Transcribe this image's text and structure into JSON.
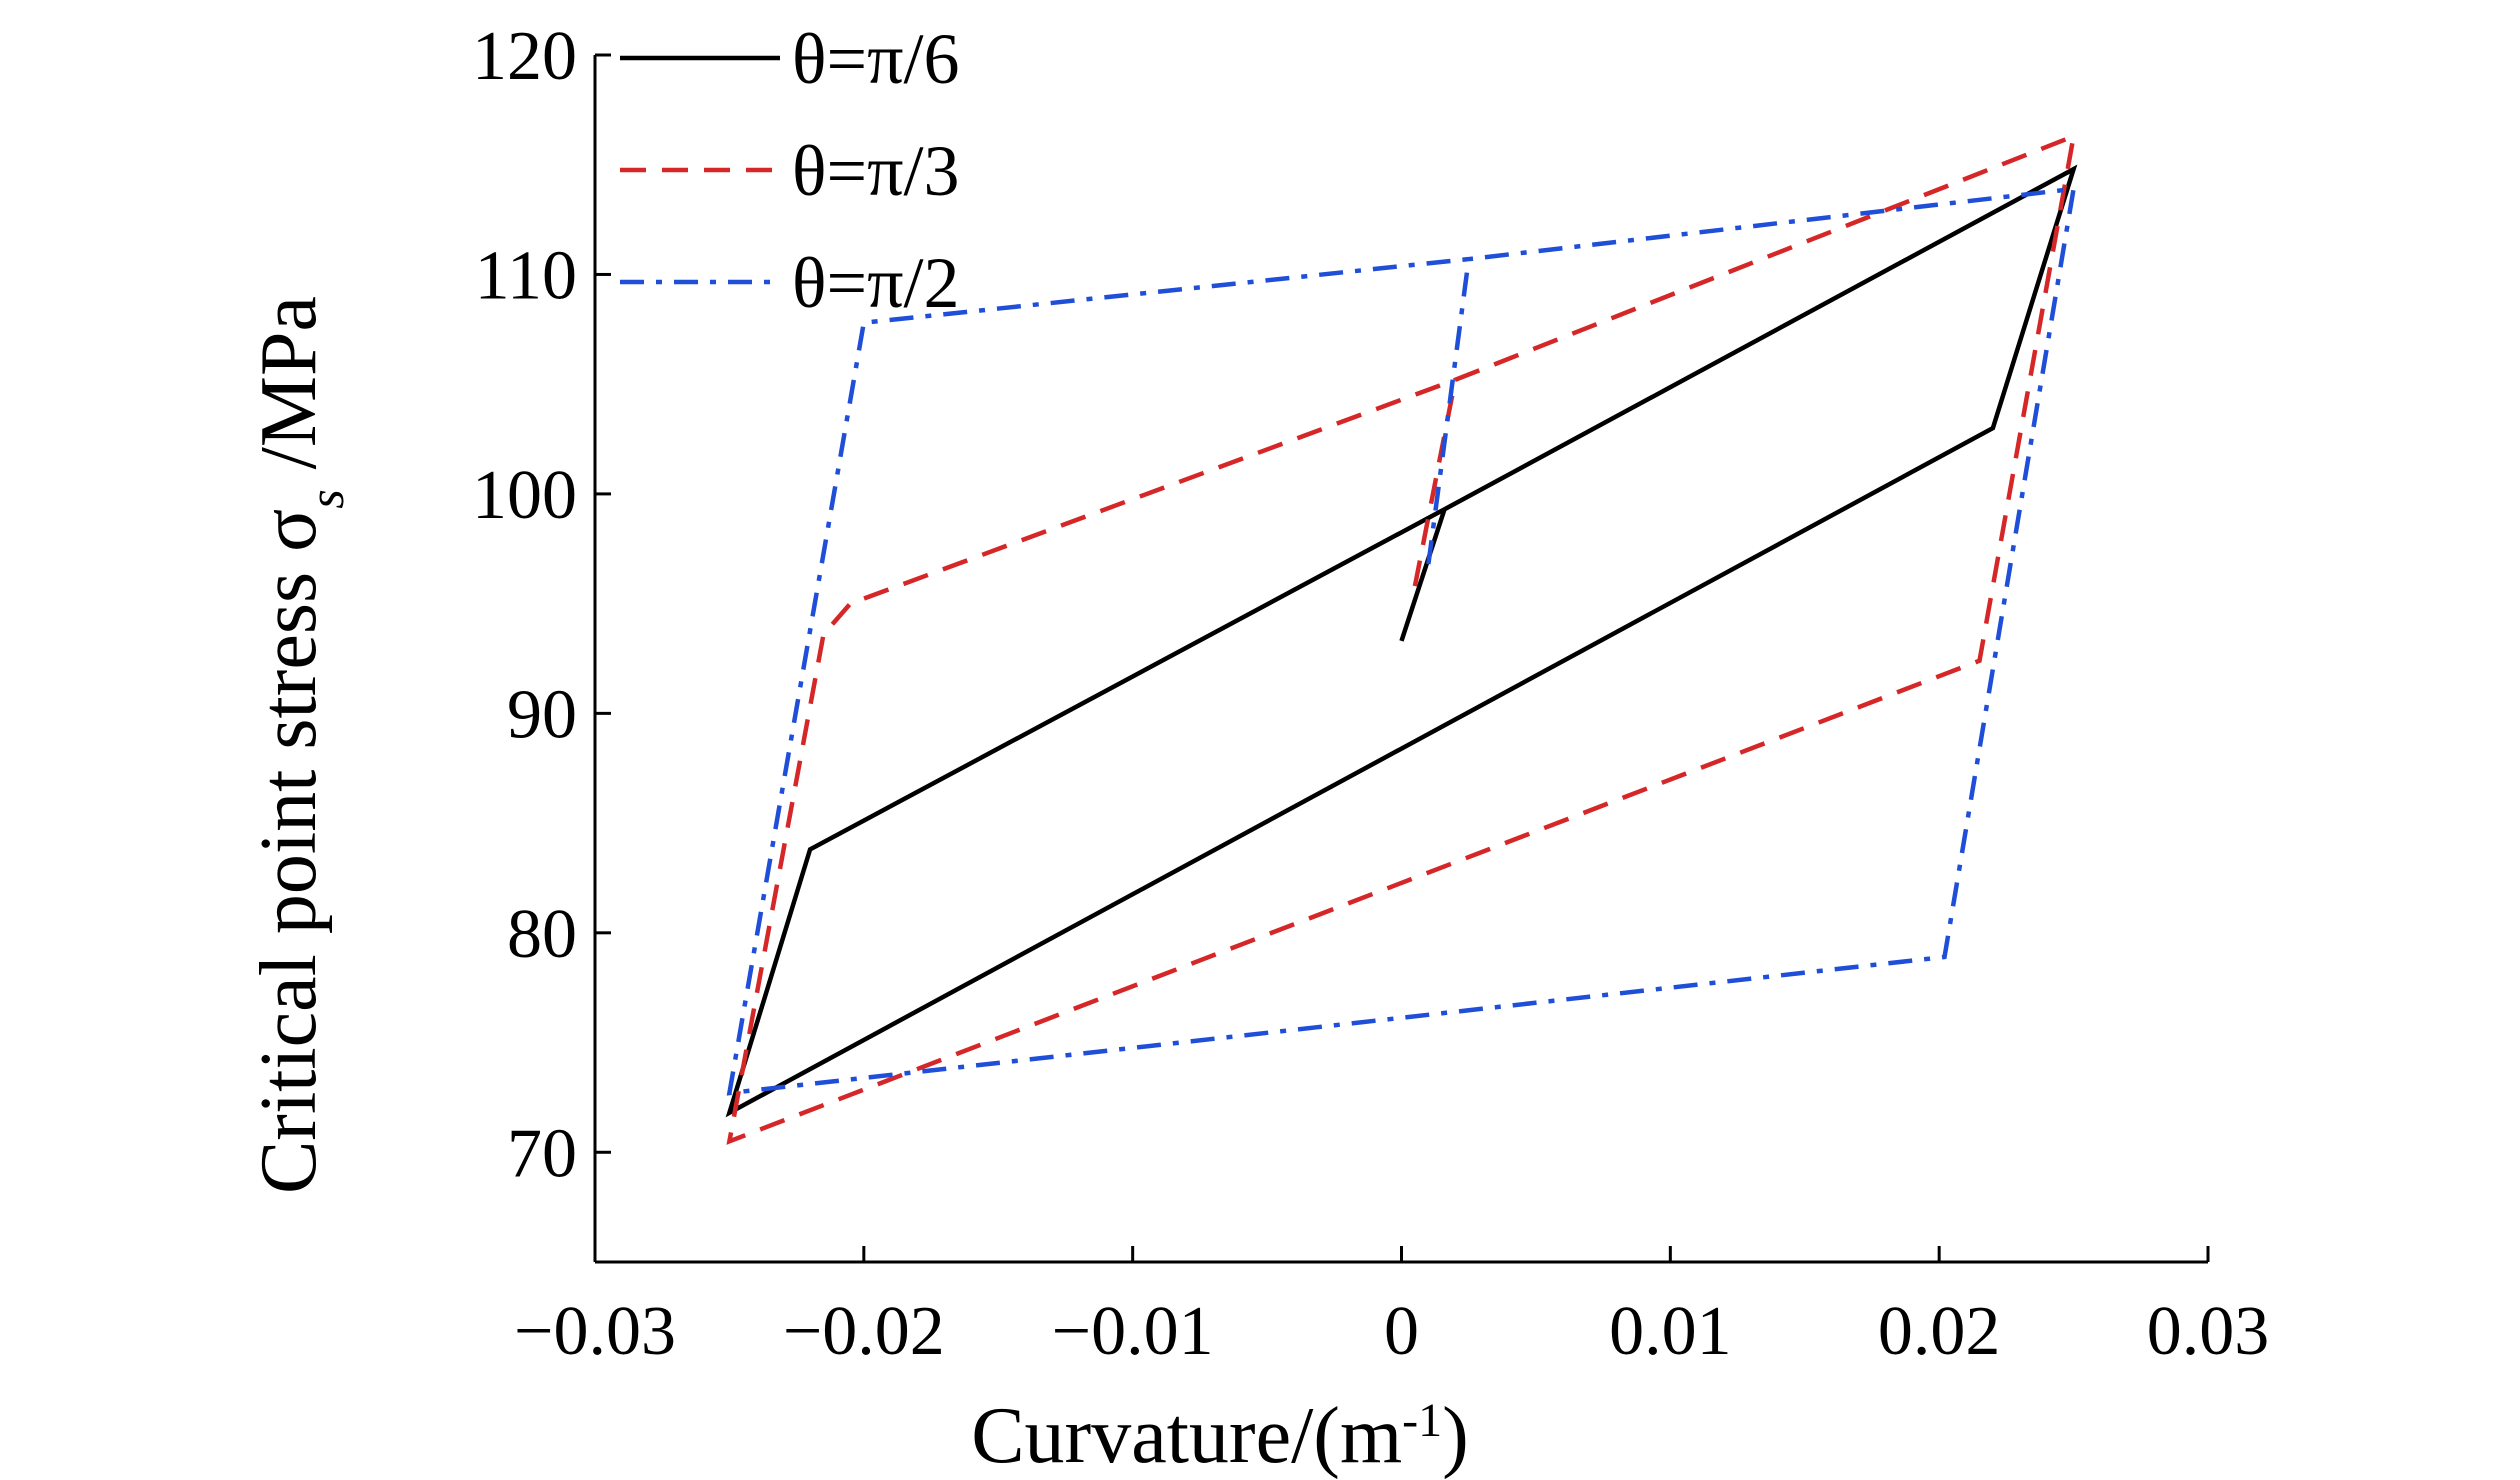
{
  "chart_data": {
    "type": "line",
    "title": "",
    "xlabel": "Curvature/(m",
    "xlabel_sup": "-1",
    "xlabel_tail": ")",
    "ylabel": "Critical point stress σ",
    "ylabel_sub": "s",
    "ylabel_tail": " /MPa",
    "xlim": [
      -0.03,
      0.03
    ],
    "ylim": [
      65,
      120
    ],
    "xticks": [
      -0.03,
      -0.02,
      -0.01,
      0,
      0.01,
      0.02,
      0.03
    ],
    "xtick_labels": [
      "−0.03",
      "−0.02",
      "−0.01",
      "0",
      "0.01",
      "0.02",
      "0.03"
    ],
    "yticks": [
      70,
      80,
      90,
      100,
      110,
      120
    ],
    "ytick_labels": [
      "70",
      "80",
      "90",
      "100",
      "110",
      "120"
    ],
    "grid": false,
    "legend_position": "top-left",
    "series": [
      {
        "name": "θ=π/6",
        "color": "#000000",
        "dash": "solid",
        "points": [
          [
            0.0,
            93.3
          ],
          [
            0.0016,
            99.3
          ],
          [
            0.025,
            114.8
          ],
          [
            0.022,
            103.0
          ],
          [
            -0.025,
            71.8
          ],
          [
            -0.022,
            83.8
          ],
          [
            0.0016,
            99.3
          ]
        ]
      },
      {
        "name": "θ=π/3",
        "color": "#d62728",
        "dash": "dashed",
        "points": [
          [
            0.0005,
            95.8
          ],
          [
            0.002,
            105.2
          ],
          [
            0.025,
            116.3
          ],
          [
            0.0215,
            92.4
          ],
          [
            -0.025,
            70.5
          ],
          [
            -0.0215,
            93.6
          ],
          [
            -0.0205,
            95.0
          ],
          [
            0.002,
            105.2
          ]
        ]
      },
      {
        "name": "θ=π/2",
        "color": "#1f4ed8",
        "dash": "dashdot",
        "points": [
          [
            0.001,
            96.8
          ],
          [
            0.0025,
            110.7
          ],
          [
            0.025,
            113.9
          ],
          [
            0.0202,
            78.9
          ],
          [
            -0.025,
            72.7
          ],
          [
            -0.02,
            107.8
          ],
          [
            0.0025,
            110.7
          ]
        ]
      }
    ]
  }
}
